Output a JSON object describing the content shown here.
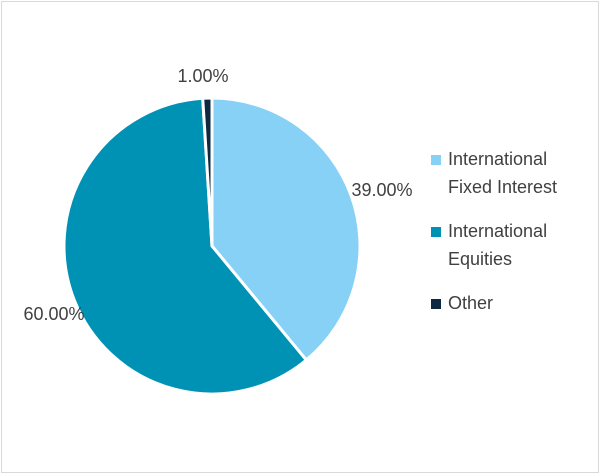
{
  "chart_data": {
    "type": "pie",
    "slices": [
      {
        "label": "International Fixed Interest",
        "value": 39.0,
        "display": "39.00%",
        "color": "#87d1f6"
      },
      {
        "label": "International Equities",
        "value": 60.0,
        "display": "60.00%",
        "color": "#0092b4"
      },
      {
        "label": "Other",
        "value": 1.0,
        "display": "1.00%",
        "color": "#0e2841"
      }
    ],
    "legend_lines": [
      [
        "International",
        "Fixed Interest"
      ],
      [
        "International",
        "Equities"
      ],
      [
        "Other"
      ]
    ],
    "start_angle_deg": 0,
    "direction": "clockwise",
    "legend_position": "right",
    "slice_border_color": "#ffffff"
  }
}
